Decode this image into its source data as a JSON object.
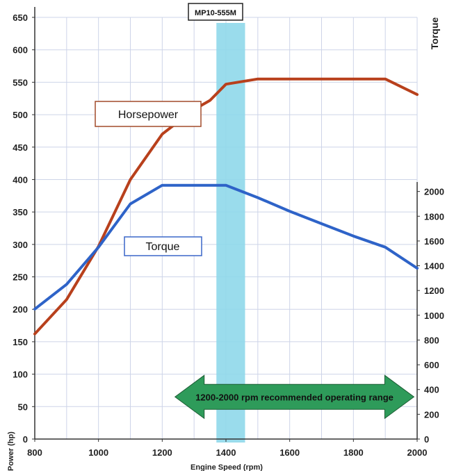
{
  "chart_data": {
    "type": "line",
    "title": "MP10-555M",
    "xlabel": "Engine Speed (rpm)",
    "ylabel_left": "Power (hp)",
    "ylabel_right": "Torque",
    "xlim": [
      800,
      2000
    ],
    "ylim_left": [
      0,
      650
    ],
    "ylim_right": [
      0,
      2200
    ],
    "x_ticks": [
      800,
      1000,
      1200,
      1400,
      1600,
      1800,
      2000
    ],
    "y_ticks_left": [
      0,
      50,
      100,
      150,
      200,
      250,
      300,
      350,
      400,
      450,
      500,
      550,
      600,
      650
    ],
    "y_ticks_right": [
      0,
      200,
      400,
      600,
      800,
      1000,
      1200,
      1400,
      1600,
      1800,
      2000
    ],
    "grid": true,
    "series": [
      {
        "name": "Horsepower",
        "axis": "left",
        "color": "#b8401c",
        "x": [
          800,
          900,
          1000,
          1100,
          1200,
          1300,
          1350,
          1400,
          1500,
          1600,
          1700,
          1800,
          1900,
          2000
        ],
        "y": [
          162,
          215,
          297,
          400,
          470,
          508,
          522,
          547,
          555,
          555,
          555,
          555,
          555,
          531
        ]
      },
      {
        "name": "Torque",
        "axis": "right",
        "color": "#2e63c8",
        "x": [
          800,
          900,
          1000,
          1100,
          1200,
          1300,
          1400,
          1500,
          1600,
          1700,
          1800,
          1900,
          2000
        ],
        "y": [
          1050,
          1250,
          1550,
          1900,
          2050,
          2050,
          2050,
          1950,
          1840,
          1740,
          1640,
          1550,
          1380
        ]
      }
    ],
    "highlight_band": {
      "x_from": 1370,
      "x_to": 1460,
      "color": "#8fd8ea"
    },
    "annotations": {
      "range_arrow": {
        "text": "1200-2000 rpm recommended operating range",
        "x_from": 1240,
        "x_to": 1990,
        "y": 65,
        "color": "#2e9b5a"
      }
    }
  }
}
